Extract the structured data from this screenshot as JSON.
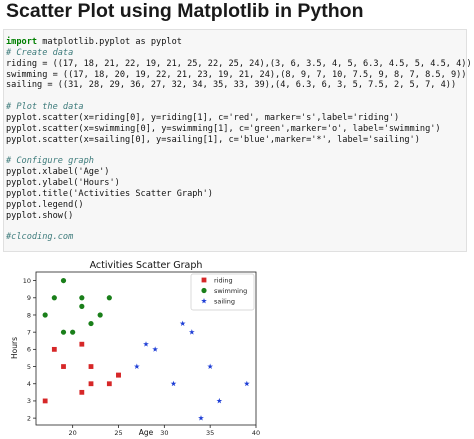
{
  "heading": "Scatter Plot using Matplotlib in Python",
  "code": {
    "lines": [
      "import matplotlib.pyplot as pyplot",
      "# Create data",
      "riding = ((17, 18, 21, 22, 19, 21, 25, 22, 25, 24),(3, 6, 3.5, 4, 5, 6.3, 4.5, 5, 4.5, 4))",
      "swimming = ((17, 18, 20, 19, 22, 21, 23, 19, 21, 24),(8, 9, 7, 10, 7.5, 9, 8, 7, 8.5, 9))",
      "sailing = ((31, 28, 29, 36, 27, 32, 34, 35, 33, 39),(4, 6.3, 6, 3, 5, 7.5, 2, 5, 7, 4))",
      "",
      "# Plot the data",
      "pyplot.scatter(x=riding[0], y=riding[1], c='red', marker='s',label='riding')",
      "pyplot.scatter(x=swimming[0], y=swimming[1], c='green',marker='o', label='swimming')",
      "pyplot.scatter(x=sailing[0], y=sailing[1], c='blue',marker='*', label='sailing')",
      "",
      "# Configure graph",
      "pyplot.xlabel('Age')",
      "pyplot.ylabel('Hours')",
      "pyplot.title('Activities Scatter Graph')",
      "pyplot.legend()",
      "pyplot.show()",
      "",
      "#clcoding.com"
    ]
  },
  "chart_data": {
    "type": "scatter",
    "title": "Activities Scatter Graph",
    "xlabel": "Age",
    "ylabel": "Hours",
    "xlim": [
      16,
      40
    ],
    "ylim": [
      1.6,
      10.5
    ],
    "xticks": [
      20,
      25,
      30,
      35,
      40
    ],
    "yticks": [
      2,
      3,
      4,
      5,
      6,
      7,
      8,
      9,
      10
    ],
    "grid": false,
    "legend_position": "upper-right",
    "series": [
      {
        "name": "riding",
        "color": "#d62728",
        "marker": "square",
        "x": [
          17,
          18,
          21,
          22,
          19,
          21,
          25,
          22,
          25,
          24
        ],
        "y": [
          3,
          6,
          3.5,
          4,
          5,
          6.3,
          4.5,
          5,
          4.5,
          4
        ]
      },
      {
        "name": "swimming",
        "color": "#1a7f1a",
        "marker": "circle",
        "x": [
          17,
          18,
          20,
          19,
          22,
          21,
          23,
          19,
          21,
          24
        ],
        "y": [
          8,
          9,
          7,
          10,
          7.5,
          9,
          8,
          7,
          8.5,
          9
        ]
      },
      {
        "name": "sailing",
        "color": "#1f3fd6",
        "marker": "star",
        "x": [
          31,
          28,
          29,
          36,
          27,
          32,
          34,
          35,
          33,
          39
        ],
        "y": [
          4,
          6.3,
          6,
          3,
          5,
          7.5,
          2,
          5,
          7,
          4
        ]
      }
    ]
  }
}
